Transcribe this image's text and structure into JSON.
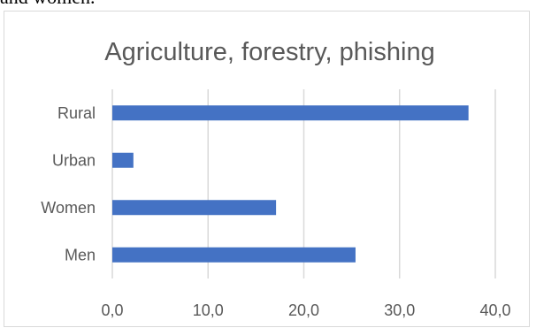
{
  "page": {
    "top_fragment": "and women."
  },
  "colors": {
    "bar": "#4472c4",
    "gridline": "#d9d9d9",
    "axis_text": "#595959",
    "title_text": "#595959",
    "frame": "#d9d9d9"
  },
  "chart_data": {
    "type": "bar",
    "orientation": "horizontal",
    "title": "Agriculture, forestry, phishing",
    "categories": [
      "Rural",
      "Urban",
      "Women",
      "Men"
    ],
    "values": [
      37.2,
      2.2,
      17.1,
      25.4
    ],
    "xlim": [
      0,
      40
    ],
    "xticks": [
      0,
      10,
      20,
      30,
      40
    ],
    "xtick_labels": [
      "0,0",
      "10,0",
      "20,0",
      "30,0",
      "40,0"
    ],
    "xlabel": "",
    "ylabel": "",
    "grid": true,
    "legend": "none"
  }
}
